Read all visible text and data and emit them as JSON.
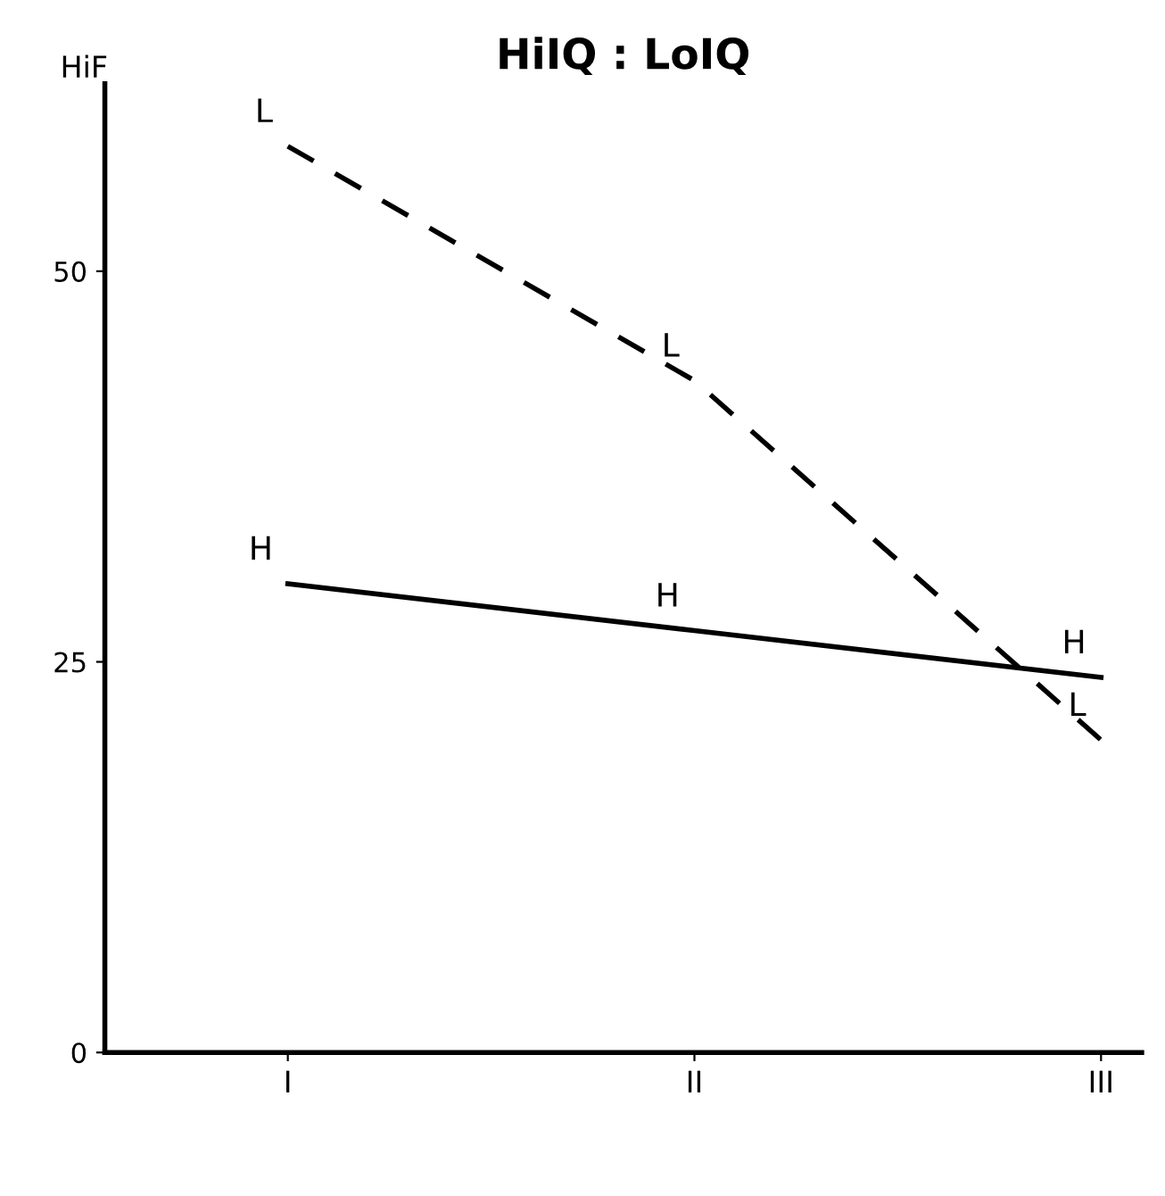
{
  "chart_data": {
    "type": "line",
    "title": "HiIQ : LoIQ",
    "ylabel": "HiF",
    "categories": [
      "I",
      "II",
      "III"
    ],
    "series": [
      {
        "name": "H",
        "color": "#000000",
        "values": [
          30,
          27,
          24
        ],
        "line_style": "solid"
      },
      {
        "name": "L",
        "color": "#000000",
        "values": [
          58,
          43,
          20
        ],
        "line_style": "dashed"
      }
    ],
    "ylim": [
      0,
      62
    ],
    "yticks": [
      0,
      25,
      50
    ],
    "grid": false,
    "legend": false
  }
}
